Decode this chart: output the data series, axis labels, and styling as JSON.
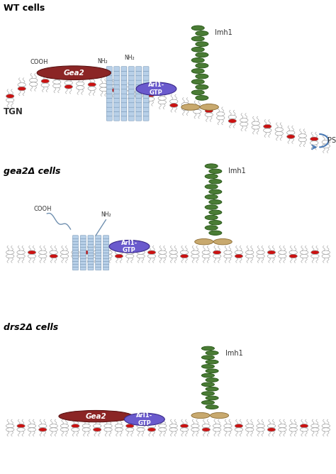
{
  "bg_color": "#ffffff",
  "panel_labels": [
    "WT cells",
    "gea2Δ cells",
    "drs2Δ cells"
  ],
  "gea2_color": "#8b2525",
  "arl1_color": "#6a5acd",
  "drs2_color": "#b8d0e8",
  "imh1_green": "#4a7c35",
  "imh1_tan": "#c8a96e",
  "ps_color": "#cc1111",
  "arrow_color": "#4a7ab5",
  "head_outline": "#888888",
  "tail_color": "#aaaaaa",
  "helix_outline": "#7090b0",
  "fig_width": 4.74,
  "fig_height": 6.68
}
